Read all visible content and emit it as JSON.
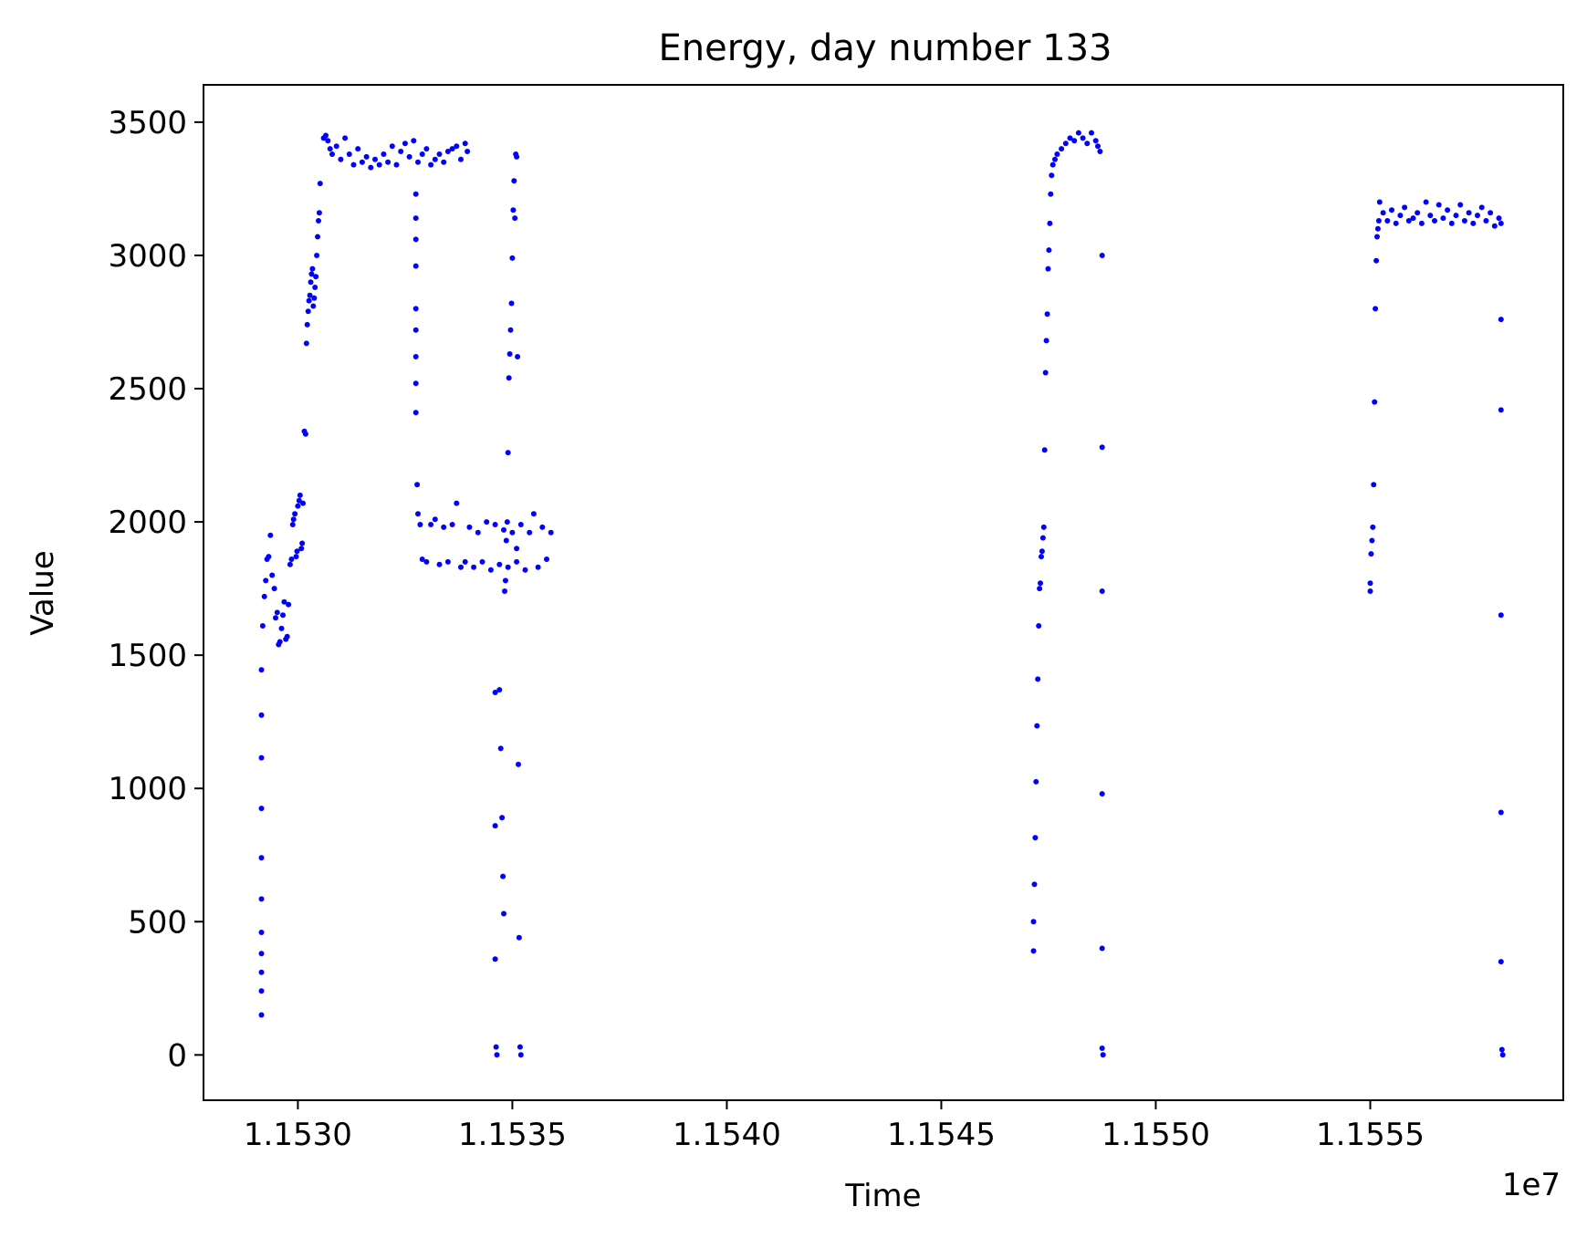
{
  "chart_data": {
    "type": "scatter",
    "title": "Energy, day number 133",
    "xlabel": "Time",
    "ylabel": "Value",
    "x_offset_label": "1e7",
    "xlim": [
      1.15278,
      1.15595
    ],
    "ylim": [
      -170,
      3640
    ],
    "x_ticks": [
      1.153,
      1.1535,
      1.154,
      1.1545,
      1.155,
      1.1555
    ],
    "x_tick_labels": [
      "1.1530",
      "1.1535",
      "1.1540",
      "1.1545",
      "1.1550",
      "1.1555"
    ],
    "y_ticks": [
      0,
      500,
      1000,
      1500,
      2000,
      2500,
      3000,
      3500
    ],
    "y_tick_labels": [
      "0",
      "500",
      "1000",
      "1500",
      "2000",
      "2500",
      "3000",
      "3500"
    ],
    "grid": false,
    "marker_color": "#0000ff",
    "series": [
      {
        "points": [
          [
            1.152915,
            150
          ],
          [
            1.152915,
            240
          ],
          [
            1.152915,
            310
          ],
          [
            1.152915,
            380
          ],
          [
            1.152915,
            460
          ],
          [
            1.152915,
            585
          ],
          [
            1.152915,
            740
          ],
          [
            1.152915,
            925
          ],
          [
            1.152915,
            1115
          ],
          [
            1.152915,
            1275
          ],
          [
            1.152915,
            1445
          ],
          [
            1.152918,
            1610
          ],
          [
            1.152922,
            1720
          ],
          [
            1.152925,
            1780
          ],
          [
            1.152928,
            1860
          ],
          [
            1.152932,
            1870
          ],
          [
            1.152936,
            1950
          ],
          [
            1.15294,
            1800
          ],
          [
            1.152945,
            1750
          ],
          [
            1.152948,
            1640
          ],
          [
            1.152952,
            1660
          ],
          [
            1.152955,
            1540
          ],
          [
            1.152958,
            1550
          ],
          [
            1.152962,
            1600
          ],
          [
            1.152965,
            1650
          ],
          [
            1.152968,
            1700
          ],
          [
            1.152972,
            1560
          ],
          [
            1.152975,
            1570
          ],
          [
            1.152978,
            1690
          ],
          [
            1.152982,
            1840
          ],
          [
            1.152985,
            1860
          ],
          [
            1.152988,
            1990
          ],
          [
            1.15299,
            2010
          ],
          [
            1.152993,
            2030
          ],
          [
            1.152996,
            1870
          ],
          [
            1.152998,
            1890
          ],
          [
            1.153,
            2060
          ],
          [
            1.153003,
            2080
          ],
          [
            1.153005,
            2100
          ],
          [
            1.153008,
            1900
          ],
          [
            1.15301,
            1920
          ],
          [
            1.153012,
            2070
          ],
          [
            1.153015,
            2340
          ],
          [
            1.153018,
            2330
          ],
          [
            1.15302,
            2670
          ],
          [
            1.153022,
            2740
          ],
          [
            1.153024,
            2790
          ],
          [
            1.153026,
            2830
          ],
          [
            1.153028,
            2850
          ],
          [
            1.15303,
            2900
          ],
          [
            1.153032,
            2930
          ],
          [
            1.153034,
            2950
          ],
          [
            1.153036,
            2810
          ],
          [
            1.153038,
            2840
          ],
          [
            1.15304,
            2880
          ],
          [
            1.153042,
            2920
          ],
          [
            1.153044,
            3000
          ],
          [
            1.153046,
            3070
          ],
          [
            1.153048,
            3130
          ],
          [
            1.15305,
            3160
          ],
          [
            1.153052,
            3270
          ],
          [
            1.15306,
            3440
          ],
          [
            1.153065,
            3450
          ],
          [
            1.15307,
            3430
          ],
          [
            1.153075,
            3400
          ],
          [
            1.15308,
            3380
          ],
          [
            1.15309,
            3410
          ],
          [
            1.1531,
            3360
          ],
          [
            1.15311,
            3440
          ],
          [
            1.15312,
            3380
          ],
          [
            1.15313,
            3340
          ],
          [
            1.15314,
            3400
          ],
          [
            1.15315,
            3350
          ],
          [
            1.15316,
            3370
          ],
          [
            1.15317,
            3330
          ],
          [
            1.15318,
            3360
          ],
          [
            1.15319,
            3340
          ],
          [
            1.1532,
            3380
          ],
          [
            1.15321,
            3350
          ],
          [
            1.15322,
            3410
          ],
          [
            1.15323,
            3340
          ],
          [
            1.15324,
            3390
          ],
          [
            1.15325,
            3420
          ],
          [
            1.15326,
            3370
          ],
          [
            1.15327,
            3430
          ],
          [
            1.15328,
            3350
          ],
          [
            1.15329,
            3380
          ],
          [
            1.1533,
            3400
          ],
          [
            1.15331,
            3340
          ],
          [
            1.15332,
            3360
          ],
          [
            1.15333,
            3380
          ],
          [
            1.15334,
            3350
          ],
          [
            1.15335,
            3390
          ],
          [
            1.15336,
            3400
          ],
          [
            1.15337,
            3410
          ],
          [
            1.15338,
            3360
          ],
          [
            1.15339,
            3420
          ],
          [
            1.153395,
            3390
          ],
          [
            1.153275,
            3230
          ],
          [
            1.153275,
            3140
          ],
          [
            1.153275,
            3060
          ],
          [
            1.153275,
            2960
          ],
          [
            1.153275,
            2800
          ],
          [
            1.153275,
            2720
          ],
          [
            1.153275,
            2620
          ],
          [
            1.153275,
            2520
          ],
          [
            1.153275,
            2410
          ],
          [
            1.153278,
            2140
          ],
          [
            1.15328,
            2030
          ],
          [
            1.153285,
            1990
          ],
          [
            1.15329,
            1860
          ],
          [
            1.1533,
            1850
          ],
          [
            1.15331,
            1990
          ],
          [
            1.15332,
            2010
          ],
          [
            1.15333,
            1840
          ],
          [
            1.15334,
            1980
          ],
          [
            1.15335,
            1850
          ],
          [
            1.15336,
            1990
          ],
          [
            1.15337,
            2070
          ],
          [
            1.15338,
            1830
          ],
          [
            1.15339,
            1850
          ],
          [
            1.1534,
            1980
          ],
          [
            1.15341,
            1830
          ],
          [
            1.15342,
            1960
          ],
          [
            1.15343,
            1850
          ],
          [
            1.15344,
            2000
          ],
          [
            1.15345,
            1820
          ],
          [
            1.15346,
            1990
          ],
          [
            1.15347,
            1840
          ],
          [
            1.15348,
            1970
          ],
          [
            1.15349,
            1830
          ],
          [
            1.1535,
            1960
          ],
          [
            1.15351,
            1850
          ],
          [
            1.15352,
            1990
          ],
          [
            1.15353,
            1820
          ],
          [
            1.15354,
            1960
          ],
          [
            1.15355,
            2030
          ],
          [
            1.15356,
            1830
          ],
          [
            1.15357,
            1980
          ],
          [
            1.15358,
            1860
          ],
          [
            1.15359,
            1960
          ],
          [
            1.15346,
            1360
          ],
          [
            1.15346,
            860
          ],
          [
            1.15346,
            360
          ],
          [
            1.153462,
            30
          ],
          [
            1.153464,
            0
          ],
          [
            1.15347,
            1370
          ],
          [
            1.153473,
            1150
          ],
          [
            1.153476,
            890
          ],
          [
            1.153478,
            670
          ],
          [
            1.15348,
            530
          ],
          [
            1.153482,
            1740
          ],
          [
            1.153484,
            1780
          ],
          [
            1.153486,
            1930
          ],
          [
            1.153488,
            2000
          ],
          [
            1.15349,
            2260
          ],
          [
            1.153492,
            2540
          ],
          [
            1.153494,
            2630
          ],
          [
            1.153496,
            2720
          ],
          [
            1.153498,
            2820
          ],
          [
            1.1535,
            2990
          ],
          [
            1.153502,
            3170
          ],
          [
            1.153504,
            3280
          ],
          [
            1.153506,
            3140
          ],
          [
            1.153508,
            3380
          ],
          [
            1.15351,
            3370
          ],
          [
            1.153512,
            2620
          ],
          [
            1.153514,
            1090
          ],
          [
            1.153516,
            440
          ],
          [
            1.153518,
            30
          ],
          [
            1.15352,
            0
          ],
          [
            1.15351,
            1900
          ],
          [
            1.154715,
            390
          ],
          [
            1.154715,
            500
          ],
          [
            1.154717,
            640
          ],
          [
            1.154719,
            815
          ],
          [
            1.154721,
            1025
          ],
          [
            1.154723,
            1235
          ],
          [
            1.154725,
            1410
          ],
          [
            1.154727,
            1610
          ],
          [
            1.154729,
            1750
          ],
          [
            1.154731,
            1770
          ],
          [
            1.154733,
            1870
          ],
          [
            1.154735,
            1890
          ],
          [
            1.154737,
            1940
          ],
          [
            1.154739,
            1980
          ],
          [
            1.154741,
            2270
          ],
          [
            1.154743,
            2560
          ],
          [
            1.154745,
            2680
          ],
          [
            1.154747,
            2780
          ],
          [
            1.154749,
            2950
          ],
          [
            1.154751,
            3020
          ],
          [
            1.154753,
            3120
          ],
          [
            1.154755,
            3230
          ],
          [
            1.154757,
            3300
          ],
          [
            1.15476,
            3340
          ],
          [
            1.154765,
            3360
          ],
          [
            1.15477,
            3380
          ],
          [
            1.15478,
            3400
          ],
          [
            1.15479,
            3420
          ],
          [
            1.1548,
            3440
          ],
          [
            1.15481,
            3430
          ],
          [
            1.15482,
            3460
          ],
          [
            1.15483,
            3440
          ],
          [
            1.15484,
            3420
          ],
          [
            1.15485,
            3460
          ],
          [
            1.15486,
            3430
          ],
          [
            1.154865,
            3410
          ],
          [
            1.15487,
            3390
          ],
          [
            1.154875,
            3000
          ],
          [
            1.154875,
            2280
          ],
          [
            1.154875,
            1740
          ],
          [
            1.154875,
            980
          ],
          [
            1.154875,
            400
          ],
          [
            1.154875,
            25
          ],
          [
            1.154877,
            0
          ],
          [
            1.1555,
            1740
          ],
          [
            1.1555,
            1770
          ],
          [
            1.155502,
            1880
          ],
          [
            1.155504,
            1930
          ],
          [
            1.155506,
            1980
          ],
          [
            1.155508,
            2140
          ],
          [
            1.15551,
            2450
          ],
          [
            1.155512,
            2800
          ],
          [
            1.155514,
            2980
          ],
          [
            1.155516,
            3070
          ],
          [
            1.155518,
            3100
          ],
          [
            1.15552,
            3130
          ],
          [
            1.155522,
            3200
          ],
          [
            1.15553,
            3160
          ],
          [
            1.15554,
            3130
          ],
          [
            1.15555,
            3170
          ],
          [
            1.15556,
            3120
          ],
          [
            1.15557,
            3150
          ],
          [
            1.15558,
            3180
          ],
          [
            1.15559,
            3130
          ],
          [
            1.1556,
            3140
          ],
          [
            1.15561,
            3160
          ],
          [
            1.15562,
            3120
          ],
          [
            1.15563,
            3200
          ],
          [
            1.15564,
            3150
          ],
          [
            1.15565,
            3130
          ],
          [
            1.15566,
            3190
          ],
          [
            1.15567,
            3140
          ],
          [
            1.15568,
            3170
          ],
          [
            1.15569,
            3120
          ],
          [
            1.1557,
            3150
          ],
          [
            1.15571,
            3190
          ],
          [
            1.15572,
            3130
          ],
          [
            1.15573,
            3160
          ],
          [
            1.15574,
            3120
          ],
          [
            1.15575,
            3150
          ],
          [
            1.15576,
            3180
          ],
          [
            1.15577,
            3130
          ],
          [
            1.15578,
            3160
          ],
          [
            1.15579,
            3110
          ],
          [
            1.1558,
            3140
          ],
          [
            1.155805,
            3120
          ],
          [
            1.155805,
            2760
          ],
          [
            1.155805,
            2420
          ],
          [
            1.155805,
            1650
          ],
          [
            1.155805,
            910
          ],
          [
            1.155805,
            350
          ],
          [
            1.155807,
            20
          ],
          [
            1.155809,
            0
          ]
        ]
      }
    ]
  }
}
